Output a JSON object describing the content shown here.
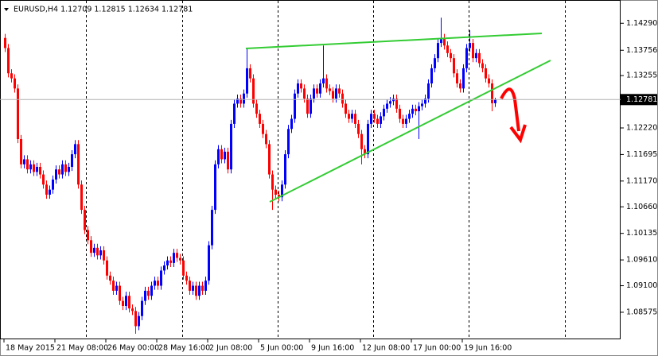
{
  "chart_data": {
    "type": "candlestick",
    "title": "EURUSD,H4  1.12709 1.12815 1.12634 1.12781",
    "up_color": "#0000ff",
    "down_color": "#ff0000",
    "last_price": 1.12781,
    "ylim": [
      1.0804,
      1.1475
    ],
    "yticks": [
      {
        "value": 1.1429,
        "label": "1.14290"
      },
      {
        "value": 1.13756,
        "label": "1.13756"
      },
      {
        "value": 1.13255,
        "label": "1.13255"
      },
      {
        "value": 1.1222,
        "label": "1.12220"
      },
      {
        "value": 1.11695,
        "label": "1.11695"
      },
      {
        "value": 1.1117,
        "label": "1.11170"
      },
      {
        "value": 1.1066,
        "label": "1.10660"
      },
      {
        "value": 1.10135,
        "label": "1.10135"
      },
      {
        "value": 1.0961,
        "label": "1.09610"
      },
      {
        "value": 1.091,
        "label": "1.09100"
      },
      {
        "value": 1.08575,
        "label": "1.08575"
      }
    ],
    "x": [
      "18 May 2015",
      null,
      null,
      null,
      null,
      null,
      null,
      null,
      null,
      null,
      null,
      null,
      null,
      null,
      null,
      null,
      "21 May 08:00",
      null,
      null,
      null,
      null,
      null,
      null,
      null,
      null,
      null,
      null,
      null,
      null,
      null,
      null,
      null,
      "26 May 00:00",
      null,
      null,
      null,
      null,
      null,
      null,
      null,
      null,
      null,
      null,
      null,
      null,
      null,
      null,
      null,
      "28 May 16:00",
      null,
      null,
      null,
      null,
      null,
      null,
      null,
      null,
      null,
      null,
      null,
      null,
      null,
      null,
      null,
      "2 Jun 08:00",
      null,
      null,
      null,
      null,
      null,
      null,
      null,
      null,
      null,
      null,
      null,
      null,
      null,
      null,
      null,
      "5 Jun 00:00",
      null,
      null,
      null,
      null,
      null,
      null,
      null,
      null,
      null,
      null,
      null,
      null,
      null,
      null,
      null,
      "9 Jun 16:00",
      null,
      null,
      null,
      null,
      null,
      null,
      null,
      null,
      null,
      null,
      null,
      null,
      null,
      null,
      null,
      "12 Jun 08:00",
      null,
      null,
      null,
      null,
      null,
      null,
      null,
      null,
      null,
      null,
      null,
      null,
      null,
      null,
      null,
      "17 Jun 00:00",
      null,
      null,
      null,
      null,
      null,
      null,
      null,
      null,
      null,
      null,
      null,
      null,
      null,
      null,
      null,
      "19 Jun 16:00",
      null,
      null,
      null,
      null,
      null,
      null,
      null,
      null,
      null,
      null
    ],
    "open": [
      1.14,
      1.138,
      1.133,
      1.132,
      1.13,
      1.12,
      1.115,
      1.116,
      1.114,
      1.115,
      1.1135,
      1.1145,
      1.113,
      1.111,
      1.109,
      1.11,
      1.112,
      1.114,
      1.113,
      1.115,
      1.1135,
      1.1145,
      1.117,
      1.119,
      1.111,
      1.106,
      1.102,
      1.1,
      1.0975,
      1.0985,
      1.097,
      1.098,
      1.096,
      1.093,
      1.092,
      1.09,
      1.091,
      1.088,
      1.087,
      1.089,
      1.0865,
      1.086,
      1.083,
      1.085,
      1.088,
      1.09,
      1.089,
      1.091,
      1.092,
      1.091,
      1.094,
      1.095,
      1.096,
      1.0955,
      1.0975,
      1.0965,
      1.096,
      1.093,
      1.092,
      1.09,
      1.091,
      1.089,
      1.091,
      1.09,
      1.092,
      1.099,
      1.106,
      1.115,
      1.118,
      1.116,
      1.1175,
      1.114,
      1.123,
      1.127,
      1.128,
      1.127,
      1.129,
      1.134,
      1.132,
      1.127,
      1.125,
      1.123,
      1.121,
      1.119,
      1.113,
      1.11,
      1.109,
      1.1085,
      1.111,
      1.117,
      1.122,
      1.124,
      1.129,
      1.131,
      1.13,
      1.128,
      1.125,
      1.128,
      1.13,
      1.129,
      1.131,
      1.132,
      1.13,
      1.1295,
      1.128,
      1.13,
      1.129,
      1.127,
      1.125,
      1.124,
      1.125,
      1.123,
      1.121,
      1.118,
      1.117,
      1.123,
      1.125,
      1.124,
      1.123,
      1.1245,
      1.126,
      1.127,
      1.1275,
      1.128,
      1.126,
      1.124,
      1.123,
      1.124,
      1.125,
      1.126,
      1.1255,
      1.1265,
      1.127,
      1.128,
      1.131,
      1.134,
      1.136,
      1.139,
      1.14,
      1.1385,
      1.137,
      1.136,
      1.133,
      1.131,
      1.13,
      1.134,
      1.138,
      1.139,
      1.136,
      1.137,
      1.135,
      1.134,
      1.132,
      1.131,
      1.12709
    ],
    "high": [
      1.1408,
      1.1388,
      1.1338,
      1.1328,
      1.1308,
      1.1208,
      1.1168,
      1.1168,
      1.1158,
      1.1158,
      1.1153,
      1.1153,
      1.1138,
      1.1118,
      1.1108,
      1.1128,
      1.1148,
      1.1148,
      1.1158,
      1.1158,
      1.1153,
      1.1178,
      1.1198,
      1.1198,
      1.1118,
      1.1068,
      1.1028,
      1.1008,
      1.0993,
      1.0993,
      1.0988,
      1.0988,
      1.0968,
      1.0938,
      1.0928,
      1.0918,
      1.0918,
      1.0888,
      1.0898,
      1.0898,
      1.0873,
      1.0868,
      1.0858,
      1.0888,
      1.0908,
      1.0908,
      1.0918,
      1.0928,
      1.0928,
      1.0948,
      1.0958,
      1.0968,
      1.0968,
      1.0983,
      1.0983,
      1.0973,
      1.0968,
      1.0938,
      1.0928,
      1.0918,
      1.0918,
      1.0918,
      1.0918,
      1.0928,
      1.0998,
      1.1068,
      1.1158,
      1.1188,
      1.1188,
      1.1183,
      1.1183,
      1.1238,
      1.1278,
      1.1288,
      1.1288,
      1.1298,
      1.138,
      1.1348,
      1.1328,
      1.1278,
      1.1258,
      1.1238,
      1.1218,
      1.1198,
      1.1138,
      1.1108,
      1.1098,
      1.1118,
      1.1178,
      1.1228,
      1.1248,
      1.1298,
      1.1318,
      1.1318,
      1.1308,
      1.1288,
      1.1288,
      1.1308,
      1.1308,
      1.1318,
      1.1385,
      1.1328,
      1.1308,
      1.1303,
      1.1308,
      1.1308,
      1.1298,
      1.1278,
      1.1258,
      1.1258,
      1.1258,
      1.1238,
      1.1218,
      1.1188,
      1.1238,
      1.1258,
      1.1258,
      1.1248,
      1.1253,
      1.1268,
      1.1278,
      1.1283,
      1.1288,
      1.1288,
      1.1268,
      1.1248,
      1.1248,
      1.1258,
      1.1268,
      1.1268,
      1.1273,
      1.1278,
      1.1288,
      1.1318,
      1.1348,
      1.1368,
      1.1398,
      1.144,
      1.1408,
      1.1393,
      1.1378,
      1.1368,
      1.1338,
      1.1318,
      1.1348,
      1.1388,
      1.1415,
      1.1398,
      1.1378,
      1.1378,
      1.1358,
      1.1348,
      1.1328,
      1.1318,
      1.12815
    ],
    "low": [
      1.1372,
      1.1322,
      1.1312,
      1.1292,
      1.1192,
      1.1142,
      1.1142,
      1.1132,
      1.1132,
      1.1127,
      1.1127,
      1.1122,
      1.1102,
      1.1082,
      1.1082,
      1.1092,
      1.1112,
      1.1122,
      1.1122,
      1.1127,
      1.1127,
      1.1137,
      1.1162,
      1.1102,
      1.1052,
      1.1012,
      1.0992,
      1.0967,
      1.0967,
      1.0962,
      1.0962,
      1.0952,
      1.0922,
      1.0912,
      1.0892,
      1.0892,
      1.0872,
      1.0862,
      1.0862,
      1.0857,
      1.0852,
      1.0815,
      1.0822,
      1.0842,
      1.0872,
      1.0882,
      1.0882,
      1.0902,
      1.0902,
      1.0902,
      1.0932,
      1.0942,
      1.0947,
      1.0947,
      1.0957,
      1.0952,
      1.0922,
      1.0912,
      1.0892,
      1.0892,
      1.0882,
      1.0882,
      1.0892,
      1.0892,
      1.0912,
      1.0982,
      1.1052,
      1.1142,
      1.1152,
      1.1152,
      1.1132,
      1.1132,
      1.1222,
      1.1262,
      1.1262,
      1.1262,
      1.1282,
      1.1312,
      1.1262,
      1.1242,
      1.1222,
      1.1202,
      1.1182,
      1.1122,
      1.106,
      1.1082,
      1.1077,
      1.1077,
      1.1102,
      1.1162,
      1.1212,
      1.1232,
      1.1282,
      1.1292,
      1.1272,
      1.1242,
      1.1242,
      1.1272,
      1.1282,
      1.1282,
      1.1302,
      1.1292,
      1.1287,
      1.1272,
      1.1272,
      1.1282,
      1.1262,
      1.1242,
      1.1232,
      1.1232,
      1.1222,
      1.1202,
      1.115,
      1.1162,
      1.1162,
      1.1222,
      1.1232,
      1.1222,
      1.1222,
      1.1237,
      1.1252,
      1.1262,
      1.1267,
      1.1252,
      1.1232,
      1.1222,
      1.1222,
      1.1232,
      1.1242,
      1.1247,
      1.12,
      1.1257,
      1.1262,
      1.1272,
      1.1302,
      1.1332,
      1.1352,
      1.1382,
      1.1377,
      1.1362,
      1.1352,
      1.1322,
      1.1302,
      1.1292,
      1.1292,
      1.1332,
      1.1372,
      1.1352,
      1.1352,
      1.1342,
      1.1332,
      1.1312,
      1.1302,
      1.1255,
      1.12634
    ],
    "close": [
      1.138,
      1.133,
      1.132,
      1.13,
      1.12,
      1.115,
      1.116,
      1.114,
      1.115,
      1.1135,
      1.1145,
      1.113,
      1.111,
      1.109,
      1.11,
      1.112,
      1.114,
      1.113,
      1.115,
      1.1135,
      1.1145,
      1.117,
      1.119,
      1.111,
      1.106,
      1.102,
      1.1,
      1.0975,
      1.0985,
      1.097,
      1.098,
      1.096,
      1.093,
      1.092,
      1.09,
      1.091,
      1.088,
      1.087,
      1.089,
      1.0865,
      1.086,
      1.083,
      1.085,
      1.088,
      1.09,
      1.089,
      1.091,
      1.092,
      1.091,
      1.094,
      1.095,
      1.096,
      1.0955,
      1.0975,
      1.0965,
      1.096,
      1.093,
      1.092,
      1.09,
      1.091,
      1.089,
      1.091,
      1.09,
      1.092,
      1.099,
      1.106,
      1.115,
      1.118,
      1.116,
      1.1175,
      1.114,
      1.123,
      1.127,
      1.128,
      1.127,
      1.129,
      1.134,
      1.132,
      1.127,
      1.125,
      1.123,
      1.121,
      1.119,
      1.113,
      1.11,
      1.109,
      1.1085,
      1.111,
      1.117,
      1.122,
      1.124,
      1.129,
      1.131,
      1.13,
      1.128,
      1.125,
      1.128,
      1.13,
      1.129,
      1.131,
      1.132,
      1.13,
      1.1295,
      1.128,
      1.13,
      1.129,
      1.127,
      1.125,
      1.124,
      1.125,
      1.123,
      1.121,
      1.118,
      1.117,
      1.123,
      1.125,
      1.124,
      1.123,
      1.1245,
      1.126,
      1.127,
      1.1275,
      1.128,
      1.126,
      1.124,
      1.123,
      1.124,
      1.125,
      1.126,
      1.1255,
      1.1265,
      1.127,
      1.128,
      1.131,
      1.134,
      1.136,
      1.139,
      1.14,
      1.1385,
      1.137,
      1.136,
      1.133,
      1.131,
      1.13,
      1.134,
      1.138,
      1.139,
      1.136,
      1.137,
      1.135,
      1.134,
      1.132,
      1.131,
      1.12709,
      1.12781
    ]
  }
}
